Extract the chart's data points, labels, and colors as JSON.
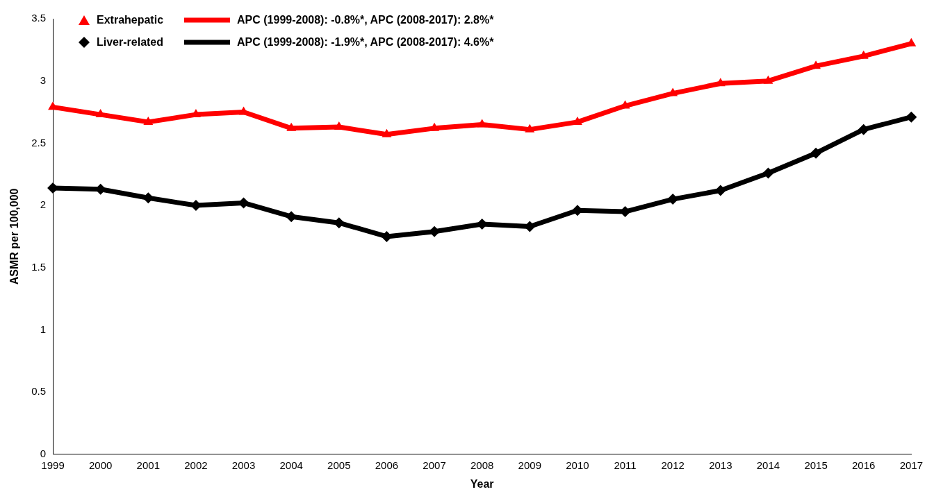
{
  "chart_data": {
    "type": "line",
    "xlabel": "Year",
    "ylabel": "ASMR per 100,000",
    "categories": [
      "1999",
      "2000",
      "2001",
      "2002",
      "2003",
      "2004",
      "2005",
      "2006",
      "2007",
      "2008",
      "2009",
      "2010",
      "2011",
      "2012",
      "2013",
      "2014",
      "2015",
      "2016",
      "2017"
    ],
    "ylim": [
      0,
      3.5
    ],
    "yticks": [
      0,
      0.5,
      1,
      1.5,
      2,
      2.5,
      3,
      3.5
    ],
    "grid": false,
    "legend": "top left",
    "series": [
      {
        "name": "Extrahepatic",
        "type": "scatter",
        "marker": "triangle",
        "color": "#ff0000",
        "values": [
          2.79,
          2.73,
          2.67,
          2.73,
          2.75,
          2.62,
          2.63,
          2.57,
          2.62,
          2.65,
          2.61,
          2.67,
          2.8,
          2.9,
          2.98,
          3.0,
          3.12,
          3.2,
          3.3
        ]
      },
      {
        "name": "Liver-related",
        "type": "scatter",
        "marker": "diamond",
        "color": "#000000",
        "values": [
          2.14,
          2.13,
          2.06,
          2.0,
          2.02,
          1.91,
          1.86,
          1.75,
          1.79,
          1.85,
          1.83,
          1.96,
          1.95,
          2.05,
          2.12,
          2.26,
          2.42,
          2.61,
          2.71
        ]
      },
      {
        "name": "APC (1999-2008): -0.8%*, APC (2008-2017): 2.8%*",
        "type": "line",
        "marker": "none",
        "color": "#ff0000",
        "values": [
          2.79,
          2.73,
          2.67,
          2.73,
          2.75,
          2.62,
          2.63,
          2.57,
          2.62,
          2.65,
          2.61,
          2.67,
          2.8,
          2.9,
          2.98,
          3.0,
          3.12,
          3.2,
          3.3
        ]
      },
      {
        "name": "APC (1999-2008): -1.9%*, APC (2008-2017): 4.6%*",
        "type": "line",
        "marker": "none",
        "color": "#000000",
        "values": [
          2.14,
          2.13,
          2.06,
          2.0,
          2.02,
          1.91,
          1.86,
          1.75,
          1.79,
          1.85,
          1.83,
          1.96,
          1.95,
          2.05,
          2.12,
          2.26,
          2.42,
          2.61,
          2.71
        ]
      }
    ]
  }
}
